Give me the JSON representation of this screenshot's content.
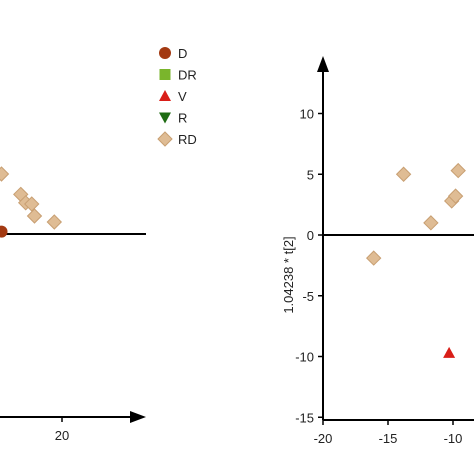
{
  "colors": {
    "D": "#a33a12",
    "DR": "#7ab52c",
    "V": "#d91e18",
    "R": "#1e6b12",
    "RD": "#dfbc94",
    "RD_stroke": "#c89f72",
    "axis": "#000000"
  },
  "chart_data": [
    {
      "type": "scatter",
      "title": "",
      "xlabel": "",
      "ylabel": "",
      "x_ticks": [
        20
      ],
      "y_ticks": [],
      "legend": {
        "placement": "top-right",
        "entries": [
          {
            "label": "D",
            "marker": "circle",
            "color_key": "D"
          },
          {
            "label": "DR",
            "marker": "square",
            "color_key": "DR"
          },
          {
            "label": "V",
            "marker": "triangle-up",
            "color_key": "V"
          },
          {
            "label": "R",
            "marker": "triangle-down",
            "color_key": "R"
          },
          {
            "label": "RD",
            "marker": "diamond",
            "color_key": "RD"
          }
        ]
      },
      "series": [
        {
          "name": "D",
          "marker": "circle",
          "points": [
            {
              "x": 9,
              "y": 0.2
            }
          ]
        },
        {
          "name": "RD",
          "marker": "diamond",
          "points": [
            {
              "x": 9,
              "y": 5
            },
            {
              "x": 12.5,
              "y": 3.3
            },
            {
              "x": 13.4,
              "y": 2.6
            },
            {
              "x": 14.5,
              "y": 2.5
            },
            {
              "x": 15,
              "y": 1.5
            },
            {
              "x": 18.6,
              "y": 1
            }
          ]
        }
      ]
    },
    {
      "type": "scatter",
      "title": "",
      "xlabel": "",
      "ylabel": "1.04238 * t[2]",
      "xlim": [
        -20,
        -9
      ],
      "ylim": [
        -15,
        13
      ],
      "x_ticks": [
        -20,
        -15,
        -10
      ],
      "y_ticks": [
        -15,
        -10,
        -5,
        0,
        5,
        10
      ],
      "series": [
        {
          "name": "V",
          "marker": "triangle-up",
          "points": [
            {
              "x": -10.3,
              "y": -9.7
            }
          ]
        },
        {
          "name": "RD",
          "marker": "diamond",
          "points": [
            {
              "x": -16.1,
              "y": -1.9
            },
            {
              "x": -13.8,
              "y": 5
            },
            {
              "x": -11.7,
              "y": 1
            },
            {
              "x": -10.1,
              "y": 2.8
            },
            {
              "x": -9.8,
              "y": 3.2
            },
            {
              "x": -9.6,
              "y": 5.3
            }
          ]
        }
      ]
    }
  ]
}
